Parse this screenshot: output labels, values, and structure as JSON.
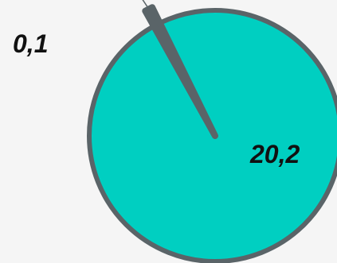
{
  "chart_data": {
    "type": "pie",
    "slices": [
      {
        "label": "0,1",
        "value": 0.1,
        "color": "#5a6468"
      },
      {
        "label": "20,2",
        "value": 20.2,
        "color": "#00cfc1"
      }
    ],
    "title": "",
    "legend": "none"
  },
  "colors": {
    "background": "#f5f5f5",
    "slice_border": "#5a6468",
    "label_text": "#111111"
  }
}
